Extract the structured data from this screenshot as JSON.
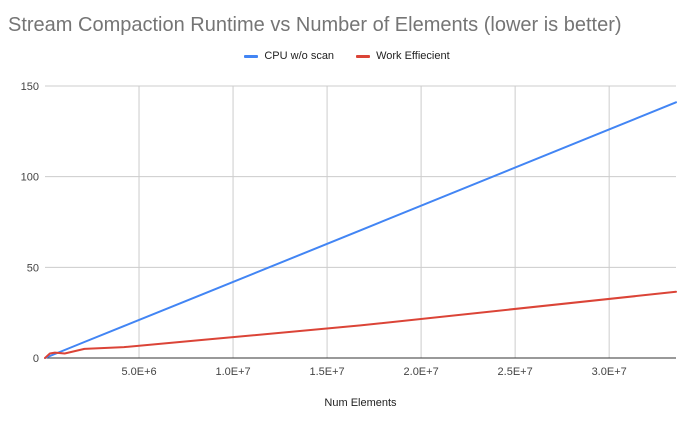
{
  "chart_data": {
    "type": "line",
    "title": "Stream Compaction Runtime vs Number of Elements (lower is better)",
    "xlabel": "Num Elements",
    "ylabel": "",
    "xlim": [
      0,
      33554432
    ],
    "ylim": [
      0,
      150
    ],
    "x_ticks": [
      5000000,
      10000000,
      15000000,
      20000000,
      25000000,
      30000000
    ],
    "x_tick_labels": [
      "5.0E+6",
      "1.0E+7",
      "1.5E+7",
      "2.0E+7",
      "2.5E+7",
      "3.0E+7"
    ],
    "y_ticks": [
      0,
      50,
      100,
      150
    ],
    "y_tick_labels": [
      "0",
      "50",
      "100",
      "150"
    ],
    "grid": true,
    "legend_position": "top",
    "series": [
      {
        "name": "CPU w/o scan",
        "color": "#4285f4",
        "x": [
          0,
          1048576,
          2097152,
          4194304,
          8388608,
          16777216,
          33554432
        ],
        "values": [
          0,
          4.4,
          8.8,
          17.6,
          35.2,
          70.4,
          141
        ]
      },
      {
        "name": "Work Effiecient",
        "color": "#db4437",
        "x": [
          0,
          262144,
          524288,
          1048576,
          2097152,
          4194304,
          8388608,
          16777216,
          33554432
        ],
        "values": [
          0,
          2.5,
          3.0,
          2.5,
          5.0,
          6.0,
          10.0,
          18.0,
          36.5
        ]
      }
    ]
  }
}
